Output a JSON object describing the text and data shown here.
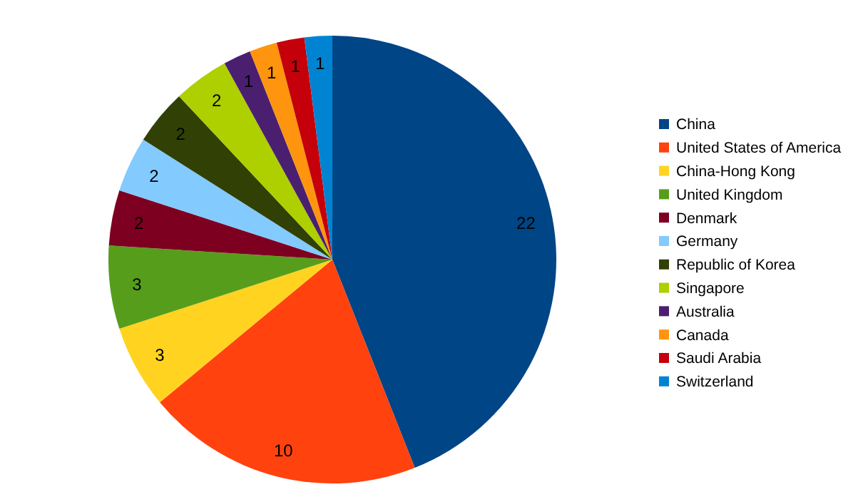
{
  "chart_data": {
    "type": "pie",
    "categories": [
      "China",
      "United States of America",
      "China-Hong Kong",
      "United Kingdom",
      "Denmark",
      "Germany",
      "Republic of Korea",
      "Singapore",
      "Australia",
      "Canada",
      "Saudi Arabia",
      "Switzerland"
    ],
    "values": [
      22,
      10,
      3,
      3,
      2,
      2,
      2,
      2,
      1,
      1,
      1,
      1
    ],
    "colors": [
      "#004586",
      "#ff420e",
      "#ffd320",
      "#579d1c",
      "#7e0021",
      "#83caff",
      "#314004",
      "#aecf00",
      "#4b1f6f",
      "#ff950e",
      "#c5000b",
      "#0084d1"
    ],
    "data_labels": true,
    "legend": "right"
  }
}
